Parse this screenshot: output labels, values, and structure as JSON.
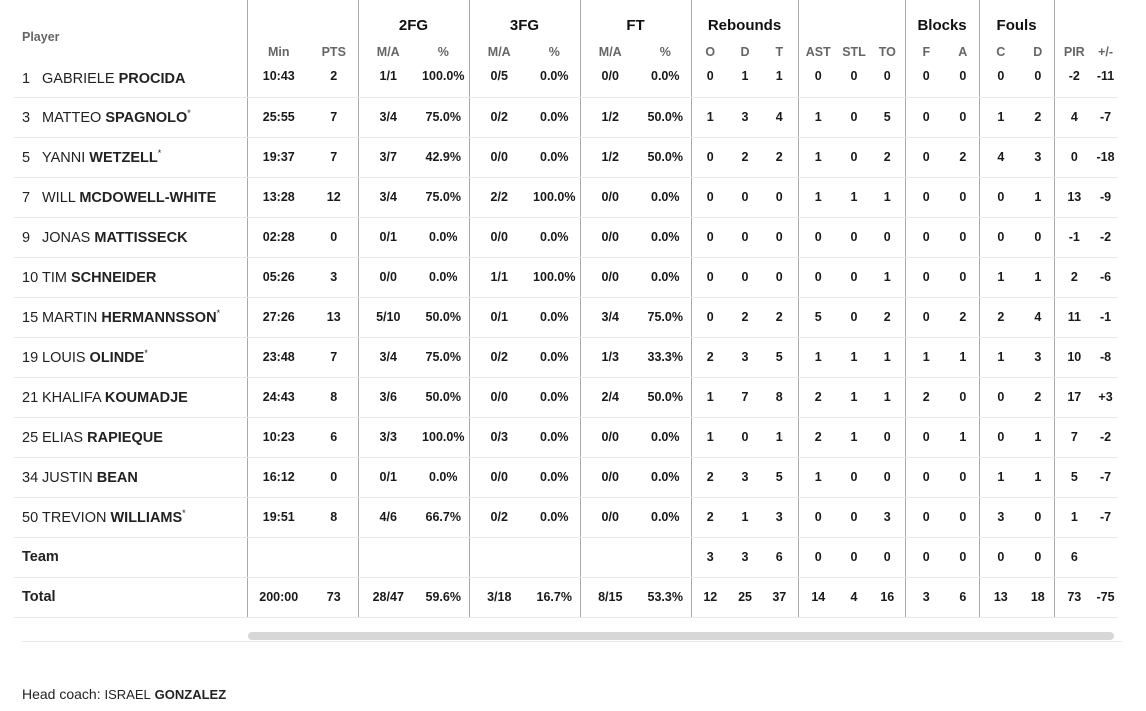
{
  "header": {
    "groups": [
      "2FG",
      "3FG",
      "FT",
      "Rebounds",
      "Blocks",
      "Fouls"
    ],
    "player_col": "Player",
    "cols": [
      "Min",
      "PTS",
      "M/A",
      "%",
      "M/A",
      "%",
      "M/A",
      "%",
      "O",
      "D",
      "T",
      "AST",
      "STL",
      "TO",
      "F",
      "A",
      "C",
      "D",
      "PIR",
      "+/-"
    ]
  },
  "players": [
    {
      "num": "1",
      "first": "GABRIELE",
      "last": "PROCIDA",
      "star": "",
      "stats": [
        "10:43",
        "2",
        "1/1",
        "100.0%",
        "0/5",
        "0.0%",
        "0/0",
        "0.0%",
        "0",
        "1",
        "1",
        "0",
        "0",
        "0",
        "0",
        "0",
        "0",
        "0",
        "-2",
        "-11"
      ]
    },
    {
      "num": "3",
      "first": "MATTEO",
      "last": "SPAGNOLO",
      "star": "*",
      "stats": [
        "25:55",
        "7",
        "3/4",
        "75.0%",
        "0/2",
        "0.0%",
        "1/2",
        "50.0%",
        "1",
        "3",
        "4",
        "1",
        "0",
        "5",
        "0",
        "0",
        "1",
        "2",
        "4",
        "-7"
      ]
    },
    {
      "num": "5",
      "first": "YANNI",
      "last": "WETZELL",
      "star": "*",
      "stats": [
        "19:37",
        "7",
        "3/7",
        "42.9%",
        "0/0",
        "0.0%",
        "1/2",
        "50.0%",
        "0",
        "2",
        "2",
        "1",
        "0",
        "2",
        "0",
        "2",
        "4",
        "3",
        "0",
        "-18"
      ]
    },
    {
      "num": "7",
      "first": "WILL",
      "last": "MCDOWELL-WHITE",
      "star": "",
      "stats": [
        "13:28",
        "12",
        "3/4",
        "75.0%",
        "2/2",
        "100.0%",
        "0/0",
        "0.0%",
        "0",
        "0",
        "0",
        "1",
        "1",
        "1",
        "0",
        "0",
        "0",
        "1",
        "13",
        "-9"
      ]
    },
    {
      "num": "9",
      "first": "JONAS",
      "last": "MATTISSECK",
      "star": "",
      "stats": [
        "02:28",
        "0",
        "0/1",
        "0.0%",
        "0/0",
        "0.0%",
        "0/0",
        "0.0%",
        "0",
        "0",
        "0",
        "0",
        "0",
        "0",
        "0",
        "0",
        "0",
        "0",
        "-1",
        "-2"
      ]
    },
    {
      "num": "10",
      "first": "TIM",
      "last": "SCHNEIDER",
      "star": "",
      "stats": [
        "05:26",
        "3",
        "0/0",
        "0.0%",
        "1/1",
        "100.0%",
        "0/0",
        "0.0%",
        "0",
        "0",
        "0",
        "0",
        "0",
        "1",
        "0",
        "0",
        "1",
        "1",
        "2",
        "-6"
      ]
    },
    {
      "num": "15",
      "first": "MARTIN",
      "last": "HERMANNSSON",
      "star": "*",
      "stats": [
        "27:26",
        "13",
        "5/10",
        "50.0%",
        "0/1",
        "0.0%",
        "3/4",
        "75.0%",
        "0",
        "2",
        "2",
        "5",
        "0",
        "2",
        "0",
        "2",
        "2",
        "4",
        "11",
        "-1"
      ]
    },
    {
      "num": "19",
      "first": "LOUIS",
      "last": "OLINDE",
      "star": "*",
      "stats": [
        "23:48",
        "7",
        "3/4",
        "75.0%",
        "0/2",
        "0.0%",
        "1/3",
        "33.3%",
        "2",
        "3",
        "5",
        "1",
        "1",
        "1",
        "1",
        "1",
        "1",
        "3",
        "10",
        "-8"
      ]
    },
    {
      "num": "21",
      "first": "KHALIFA",
      "last": "KOUMADJE",
      "star": "",
      "stats": [
        "24:43",
        "8",
        "3/6",
        "50.0%",
        "0/0",
        "0.0%",
        "2/4",
        "50.0%",
        "1",
        "7",
        "8",
        "2",
        "1",
        "1",
        "2",
        "0",
        "0",
        "2",
        "17",
        "+3"
      ]
    },
    {
      "num": "25",
      "first": "ELIAS",
      "last": "RAPIEQUE",
      "star": "",
      "stats": [
        "10:23",
        "6",
        "3/3",
        "100.0%",
        "0/3",
        "0.0%",
        "0/0",
        "0.0%",
        "1",
        "0",
        "1",
        "2",
        "1",
        "0",
        "0",
        "1",
        "0",
        "1",
        "7",
        "-2"
      ]
    },
    {
      "num": "34",
      "first": "JUSTIN",
      "last": "BEAN",
      "star": "",
      "stats": [
        "16:12",
        "0",
        "0/1",
        "0.0%",
        "0/0",
        "0.0%",
        "0/0",
        "0.0%",
        "2",
        "3",
        "5",
        "1",
        "0",
        "0",
        "0",
        "0",
        "1",
        "1",
        "5",
        "-7"
      ]
    },
    {
      "num": "50",
      "first": "TREVION",
      "last": "WILLIAMS",
      "star": "*",
      "stats": [
        "19:51",
        "8",
        "4/6",
        "66.7%",
        "0/2",
        "0.0%",
        "0/0",
        "0.0%",
        "2",
        "1",
        "3",
        "0",
        "0",
        "3",
        "0",
        "0",
        "3",
        "0",
        "1",
        "-7"
      ]
    }
  ],
  "team": {
    "label": "Team",
    "stats": [
      "",
      "",
      "",
      "",
      "",
      "",
      "",
      "",
      "3",
      "3",
      "6",
      "0",
      "0",
      "0",
      "0",
      "0",
      "0",
      "0",
      "6",
      ""
    ]
  },
  "total": {
    "label": "Total",
    "stats": [
      "200:00",
      "73",
      "28/47",
      "59.6%",
      "3/18",
      "16.7%",
      "8/15",
      "53.3%",
      "12",
      "25",
      "37",
      "14",
      "4",
      "16",
      "3",
      "6",
      "13",
      "18",
      "73",
      "-75"
    ]
  },
  "coach": {
    "prefix": "Head coach:",
    "first": "ISRAEL",
    "last": "GONZALEZ"
  }
}
